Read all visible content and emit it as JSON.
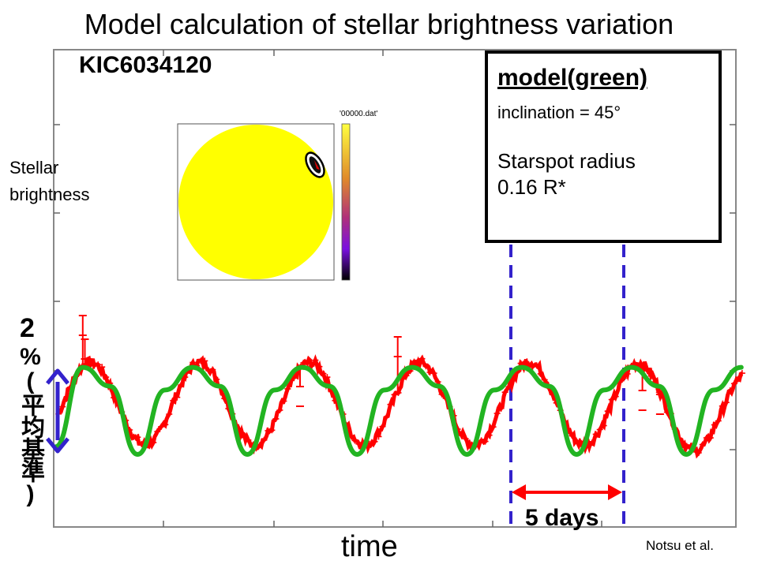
{
  "title": "Model calculation of stellar brightness variation",
  "star_id": "KIC6034120",
  "y_label": "Stellar brightness",
  "x_label": "time",
  "credit": "Notsu et al.",
  "amplitude": {
    "value": "2",
    "note": "%(平均基準)"
  },
  "period_label": "5 days",
  "model": {
    "title": "model(green)",
    "inclination": "inclination = 45°",
    "spot_label": "Starspot radius",
    "spot_value": "0.16 R*"
  },
  "inset": {
    "file_label": "'00000.dat'"
  },
  "colors": {
    "observed": "#ff0000",
    "model": "#22b422",
    "marker_lines": "#3322cc",
    "amplitude_arrow": "#3322cc",
    "period_arrow": "#ff0000",
    "star_disk": "#ffff00"
  },
  "chart_data": {
    "type": "line",
    "title": "Model calculation of stellar brightness variation",
    "xlabel": "time",
    "ylabel": "Stellar brightness",
    "x_unit": "days",
    "grid": false,
    "series": [
      {
        "name": "model(green)",
        "period_days": 5.0,
        "x": [
          0,
          1.25,
          2.5,
          3.75,
          5.0,
          6.25,
          7.5,
          8.75,
          10.0,
          11.25,
          12.5,
          13.75,
          15.0,
          16.25,
          17.5,
          18.75,
          20.0,
          21.25,
          22.5,
          23.75,
          25.0,
          26.25,
          27.5,
          28.75,
          30.0,
          31.25
        ],
        "y": [
          -1.8,
          0.3,
          -0.2,
          -2.0,
          -0.3,
          0.3,
          -0.2,
          -2.0,
          -0.3,
          0.3,
          -0.2,
          -2.0,
          -0.3,
          0.3,
          -0.2,
          -2.0,
          -0.3,
          0.3,
          -0.2,
          -2.0,
          -0.3,
          0.3,
          -0.2,
          -2.0,
          -0.3,
          0.3
        ]
      }
    ]
  }
}
